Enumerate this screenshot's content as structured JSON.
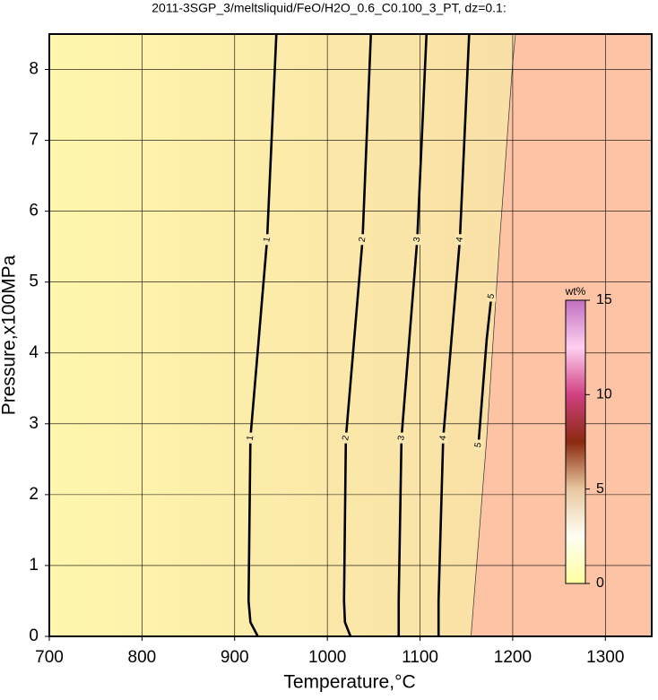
{
  "chart_data": {
    "type": "contour",
    "title": "2011-3SGP_3/meltsliquid/FeO/H2O_0.6_C0.100_3_PT, dz=0.1:",
    "x_label": "Temperature,°C",
    "y_label": "Pressure,x100MPa",
    "xlim": [
      700,
      1350
    ],
    "xticks": [
      700,
      800,
      900,
      1000,
      1100,
      1200,
      1300
    ],
    "ylim": [
      0,
      8.5
    ],
    "yticks": [
      0,
      1,
      2,
      3,
      4,
      5,
      6,
      7,
      8
    ],
    "grid": true,
    "low_color": "#fff7ad",
    "high_color": "#fcc4a4",
    "boundary": {
      "x": [
        1155,
        1158,
        1172,
        1186,
        1200,
        1203
      ],
      "y": [
        0,
        0.5,
        2.8,
        5.6,
        8.1,
        8.5
      ]
    },
    "contours": [
      {
        "level": 1,
        "x": [
          925,
          917,
          915,
          917,
          935,
          945
        ],
        "y": [
          0,
          0.2,
          0.5,
          2.8,
          5.6,
          8.5
        ]
      },
      {
        "level": 2,
        "x": [
          1025,
          1019,
          1018,
          1020,
          1038,
          1047
        ],
        "y": [
          0,
          0.2,
          0.5,
          2.8,
          5.6,
          8.5
        ]
      },
      {
        "level": 3,
        "x": [
          1077,
          1077,
          1080,
          1097,
          1107
        ],
        "y": [
          0,
          0.5,
          2.8,
          5.6,
          8.5
        ]
      },
      {
        "level": 4,
        "x": [
          1120,
          1120,
          1125,
          1143,
          1153
        ],
        "y": [
          0,
          0.5,
          2.8,
          5.6,
          8.5
        ]
      },
      {
        "level": 5,
        "x": [
          1163,
          1172,
          1177
        ],
        "y": [
          2.7,
          4.2,
          4.8
        ]
      }
    ],
    "colorbar": {
      "label": "wt%",
      "lim": [
        0,
        15
      ],
      "ticks": [
        0,
        5,
        10,
        15
      ],
      "colors": [
        "#ffffa0",
        "#fffef4",
        "#e8c8a0",
        "#8a2a10",
        "#d04080",
        "#ffd0f0",
        "#c070c0"
      ]
    }
  }
}
